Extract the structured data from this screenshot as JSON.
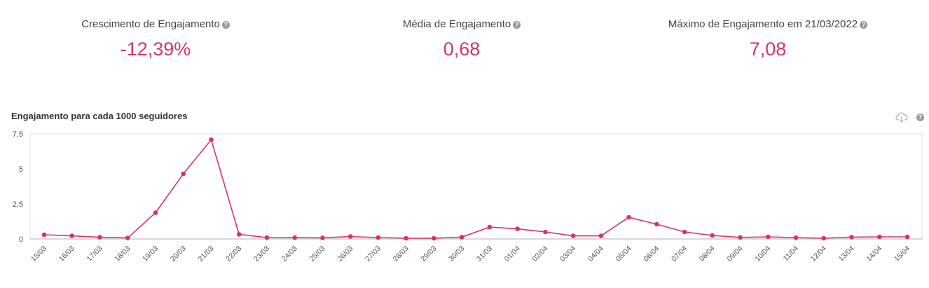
{
  "kpis": [
    {
      "label": "Crescimento de Engajamento",
      "value": "-12,39%"
    },
    {
      "label": "Média de Engajamento",
      "value": "0,68"
    },
    {
      "label": "Máximo de Engajamento em 21/03/2022",
      "value": "7,08"
    }
  ],
  "help_glyph": "?",
  "icons": {
    "download": "cloud-download-icon",
    "help": "help-icon"
  },
  "chart_data": {
    "type": "line",
    "title": "Engajamento para cada 1000 seguidores",
    "xlabel": "",
    "ylabel": "",
    "ylim": [
      0,
      7.5
    ],
    "yticks": [
      "0",
      "2,5",
      "5",
      "7,5"
    ],
    "ytick_values": [
      0,
      2.5,
      5,
      7.5
    ],
    "color": "#d6336c",
    "categories": [
      "15/03",
      "16/03",
      "17/03",
      "18/03",
      "19/03",
      "20/03",
      "21/03",
      "22/03",
      "23/03",
      "24/03",
      "25/03",
      "26/03",
      "27/03",
      "28/03",
      "29/03",
      "30/03",
      "31/03",
      "01/04",
      "02/04",
      "03/04",
      "04/04",
      "05/04",
      "06/04",
      "07/04",
      "08/04",
      "09/04",
      "10/04",
      "11/04",
      "12/04",
      "13/04",
      "14/04",
      "15/04"
    ],
    "values": [
      0.3,
      0.22,
      0.12,
      0.07,
      1.87,
      4.65,
      7.08,
      0.33,
      0.1,
      0.09,
      0.08,
      0.17,
      0.1,
      0.05,
      0.05,
      0.13,
      0.85,
      0.72,
      0.5,
      0.22,
      0.22,
      1.55,
      1.05,
      0.5,
      0.25,
      0.11,
      0.15,
      0.09,
      0.05,
      0.13,
      0.15,
      0.15
    ]
  }
}
